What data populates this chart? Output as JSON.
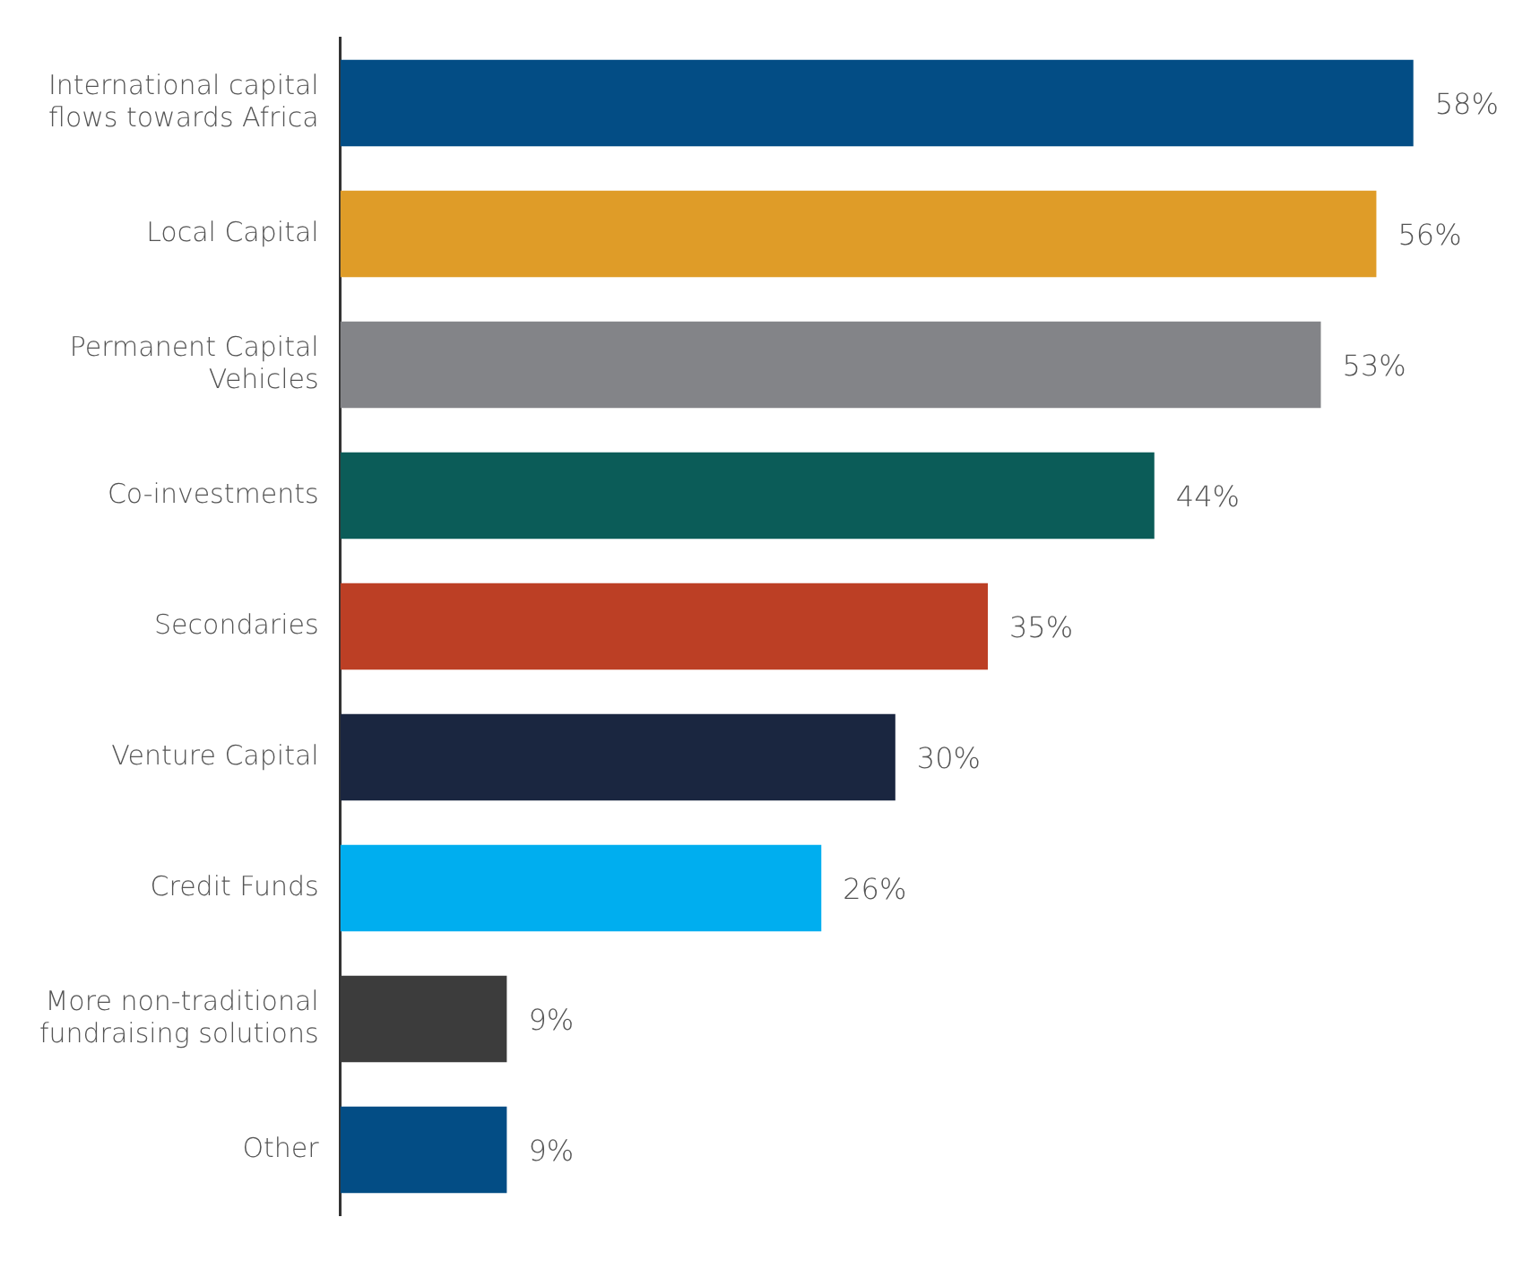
{
  "chart_data": {
    "type": "bar",
    "orientation": "horizontal",
    "categories": [
      "International capital flows towards Africa",
      "Local Capital",
      "Permanent Capital Vehicles",
      "Co-investments",
      "Secondaries",
      "Venture Capital",
      "Credit Funds",
      "More non-traditional fundraising solutions",
      "Other"
    ],
    "values": [
      58,
      56,
      53,
      44,
      35,
      30,
      26,
      9,
      9
    ],
    "colors": [
      "#034d85",
      "#df9c28",
      "#838488",
      "#0b5c58",
      "#bc3f25",
      "#1a2640",
      "#00aeef",
      "#3c3c3c",
      "#034d85"
    ],
    "value_labels": [
      "58%",
      "56%",
      "53%",
      "44%",
      "35%",
      "30%",
      "26%",
      "9%",
      "9%"
    ],
    "grid": false,
    "legend": false,
    "tick_labels": "y"
  }
}
